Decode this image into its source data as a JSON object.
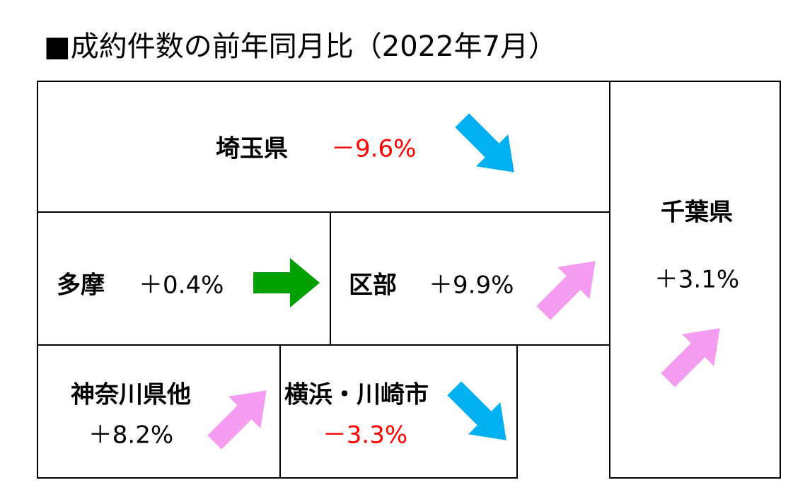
{
  "title": "■成約件数の前年同月比（2022年7月）",
  "regions": [
    {
      "name": "埼玉県",
      "change": "－9.6%"
    },
    {
      "name": "千葉県",
      "change": "＋3.1%"
    },
    {
      "name": "多摩",
      "change": "＋0.4%"
    },
    {
      "name": "区部",
      "change": "＋9.9%"
    },
    {
      "name": "神奈川県他",
      "change": "＋8.2%"
    },
    {
      "name": "横浜・川崎市",
      "change": "－3.3%"
    }
  ]
}
